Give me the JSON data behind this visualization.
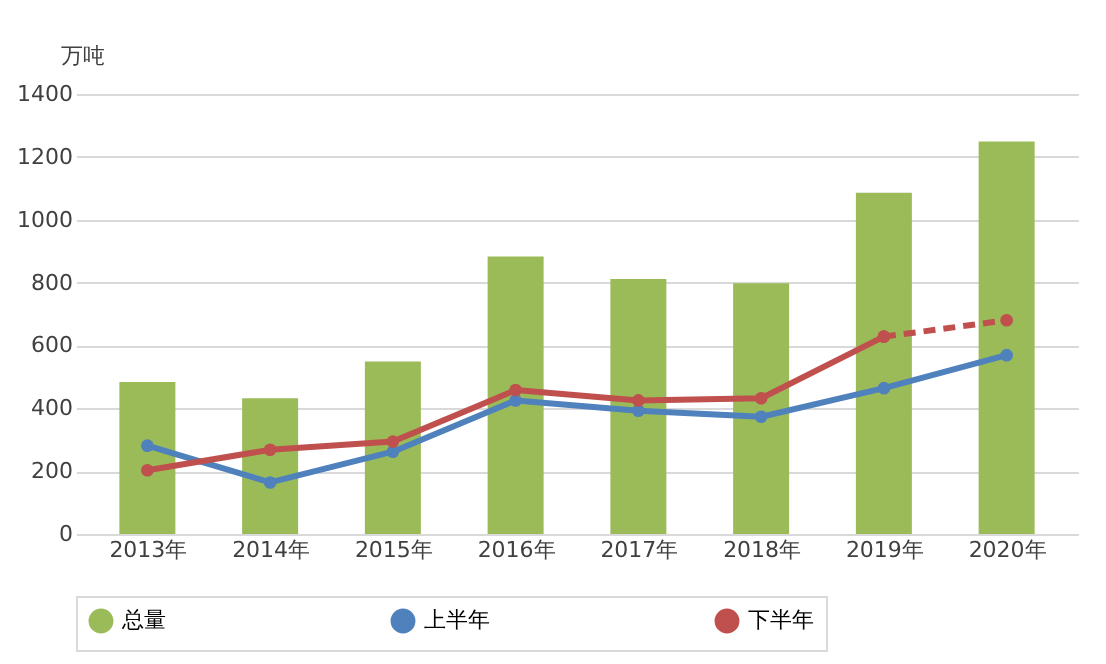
{
  "chart_data": {
    "type": "bar",
    "ylabel": "万吨",
    "categories": [
      "2013年",
      "2014年",
      "2015年",
      "2016年",
      "2017年",
      "2018年",
      "2019年",
      "2020年"
    ],
    "series": [
      {
        "name": "总量",
        "color": "#9bbb59",
        "values": [
          484,
          432,
          549,
          883,
          811,
          798,
          1086,
          1249
        ]
      },
      {
        "name": "上半年",
        "type": "line",
        "color": "#4f81bd",
        "marker": "circle",
        "line_style": "solid",
        "values": [
          281,
          164,
          262,
          425,
          392,
          373,
          464,
          569
        ]
      },
      {
        "name": "下半年",
        "type": "line",
        "color": "#c0504d",
        "marker": "circle",
        "line_style": "solid",
        "values": [
          203,
          268,
          294,
          458,
          425,
          432,
          628,
          null
        ]
      },
      {
        "type": "line",
        "color": "#c0504d",
        "marker": "circle",
        "line_style": "dashed",
        "values": [
          null,
          null,
          null,
          null,
          null,
          null,
          628,
          680
        ]
      }
    ],
    "ylim": [
      0,
      1400
    ],
    "yticks": [
      0,
      200,
      400,
      600,
      800,
      1000,
      1200,
      1400
    ],
    "grid": "y",
    "legend": "bottom"
  }
}
